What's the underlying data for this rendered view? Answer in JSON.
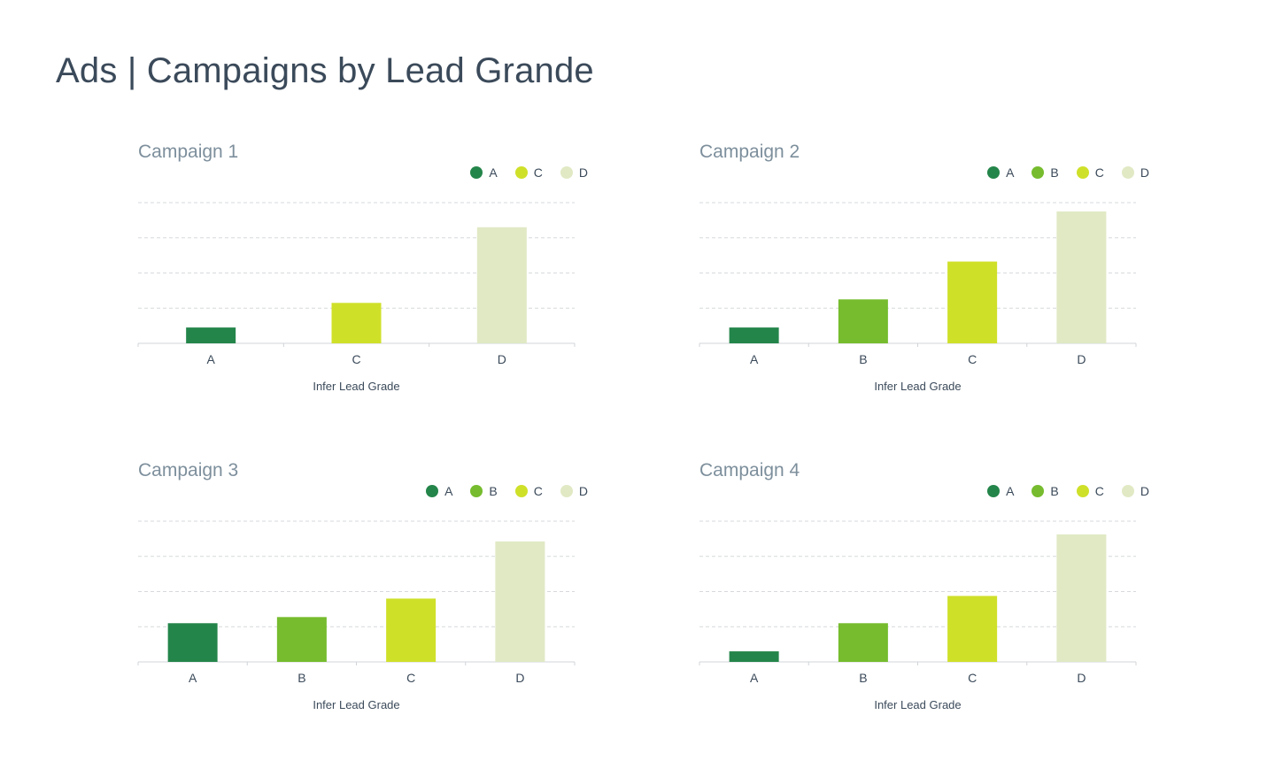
{
  "page": {
    "title": "Ads | Campaigns by Lead Grande"
  },
  "colors": {
    "A": "#24854a",
    "B": "#76bc2e",
    "C": "#cfe029",
    "D": "#e0e9c4",
    "grid": "#d6d9dc",
    "axis": "#d0d4d8",
    "tick_text": "#3b4a5a"
  },
  "chart_data": [
    {
      "type": "bar",
      "title": "Campaign 1",
      "xlabel": "Infer Lead Grade",
      "ylabel": "",
      "categories": [
        "A",
        "C",
        "D"
      ],
      "values": [
        18,
        46,
        132
      ],
      "ylim": [
        0,
        160
      ],
      "legend": [
        "A",
        "C",
        "D"
      ],
      "legend_position": "top-right",
      "grid": true
    },
    {
      "type": "bar",
      "title": "Campaign 2",
      "xlabel": "Infer Lead Grade",
      "ylabel": "",
      "categories": [
        "A",
        "B",
        "C",
        "D"
      ],
      "values": [
        18,
        50,
        93,
        150
      ],
      "ylim": [
        0,
        160
      ],
      "legend": [
        "A",
        "B",
        "C",
        "D"
      ],
      "legend_position": "top-right",
      "grid": true
    },
    {
      "type": "bar",
      "title": "Campaign 3",
      "xlabel": "Infer Lead Grade",
      "ylabel": "",
      "categories": [
        "A",
        "B",
        "C",
        "D"
      ],
      "values": [
        44,
        51,
        72,
        137
      ],
      "ylim": [
        0,
        160
      ],
      "legend": [
        "A",
        "B",
        "C",
        "D"
      ],
      "legend_position": "top-right",
      "grid": true
    },
    {
      "type": "bar",
      "title": "Campaign 4",
      "xlabel": "Infer Lead Grade",
      "ylabel": "",
      "categories": [
        "A",
        "B",
        "C",
        "D"
      ],
      "values": [
        12,
        44,
        75,
        145
      ],
      "ylim": [
        0,
        160
      ],
      "legend": [
        "A",
        "B",
        "C",
        "D"
      ],
      "legend_position": "top-right",
      "grid": true
    }
  ]
}
